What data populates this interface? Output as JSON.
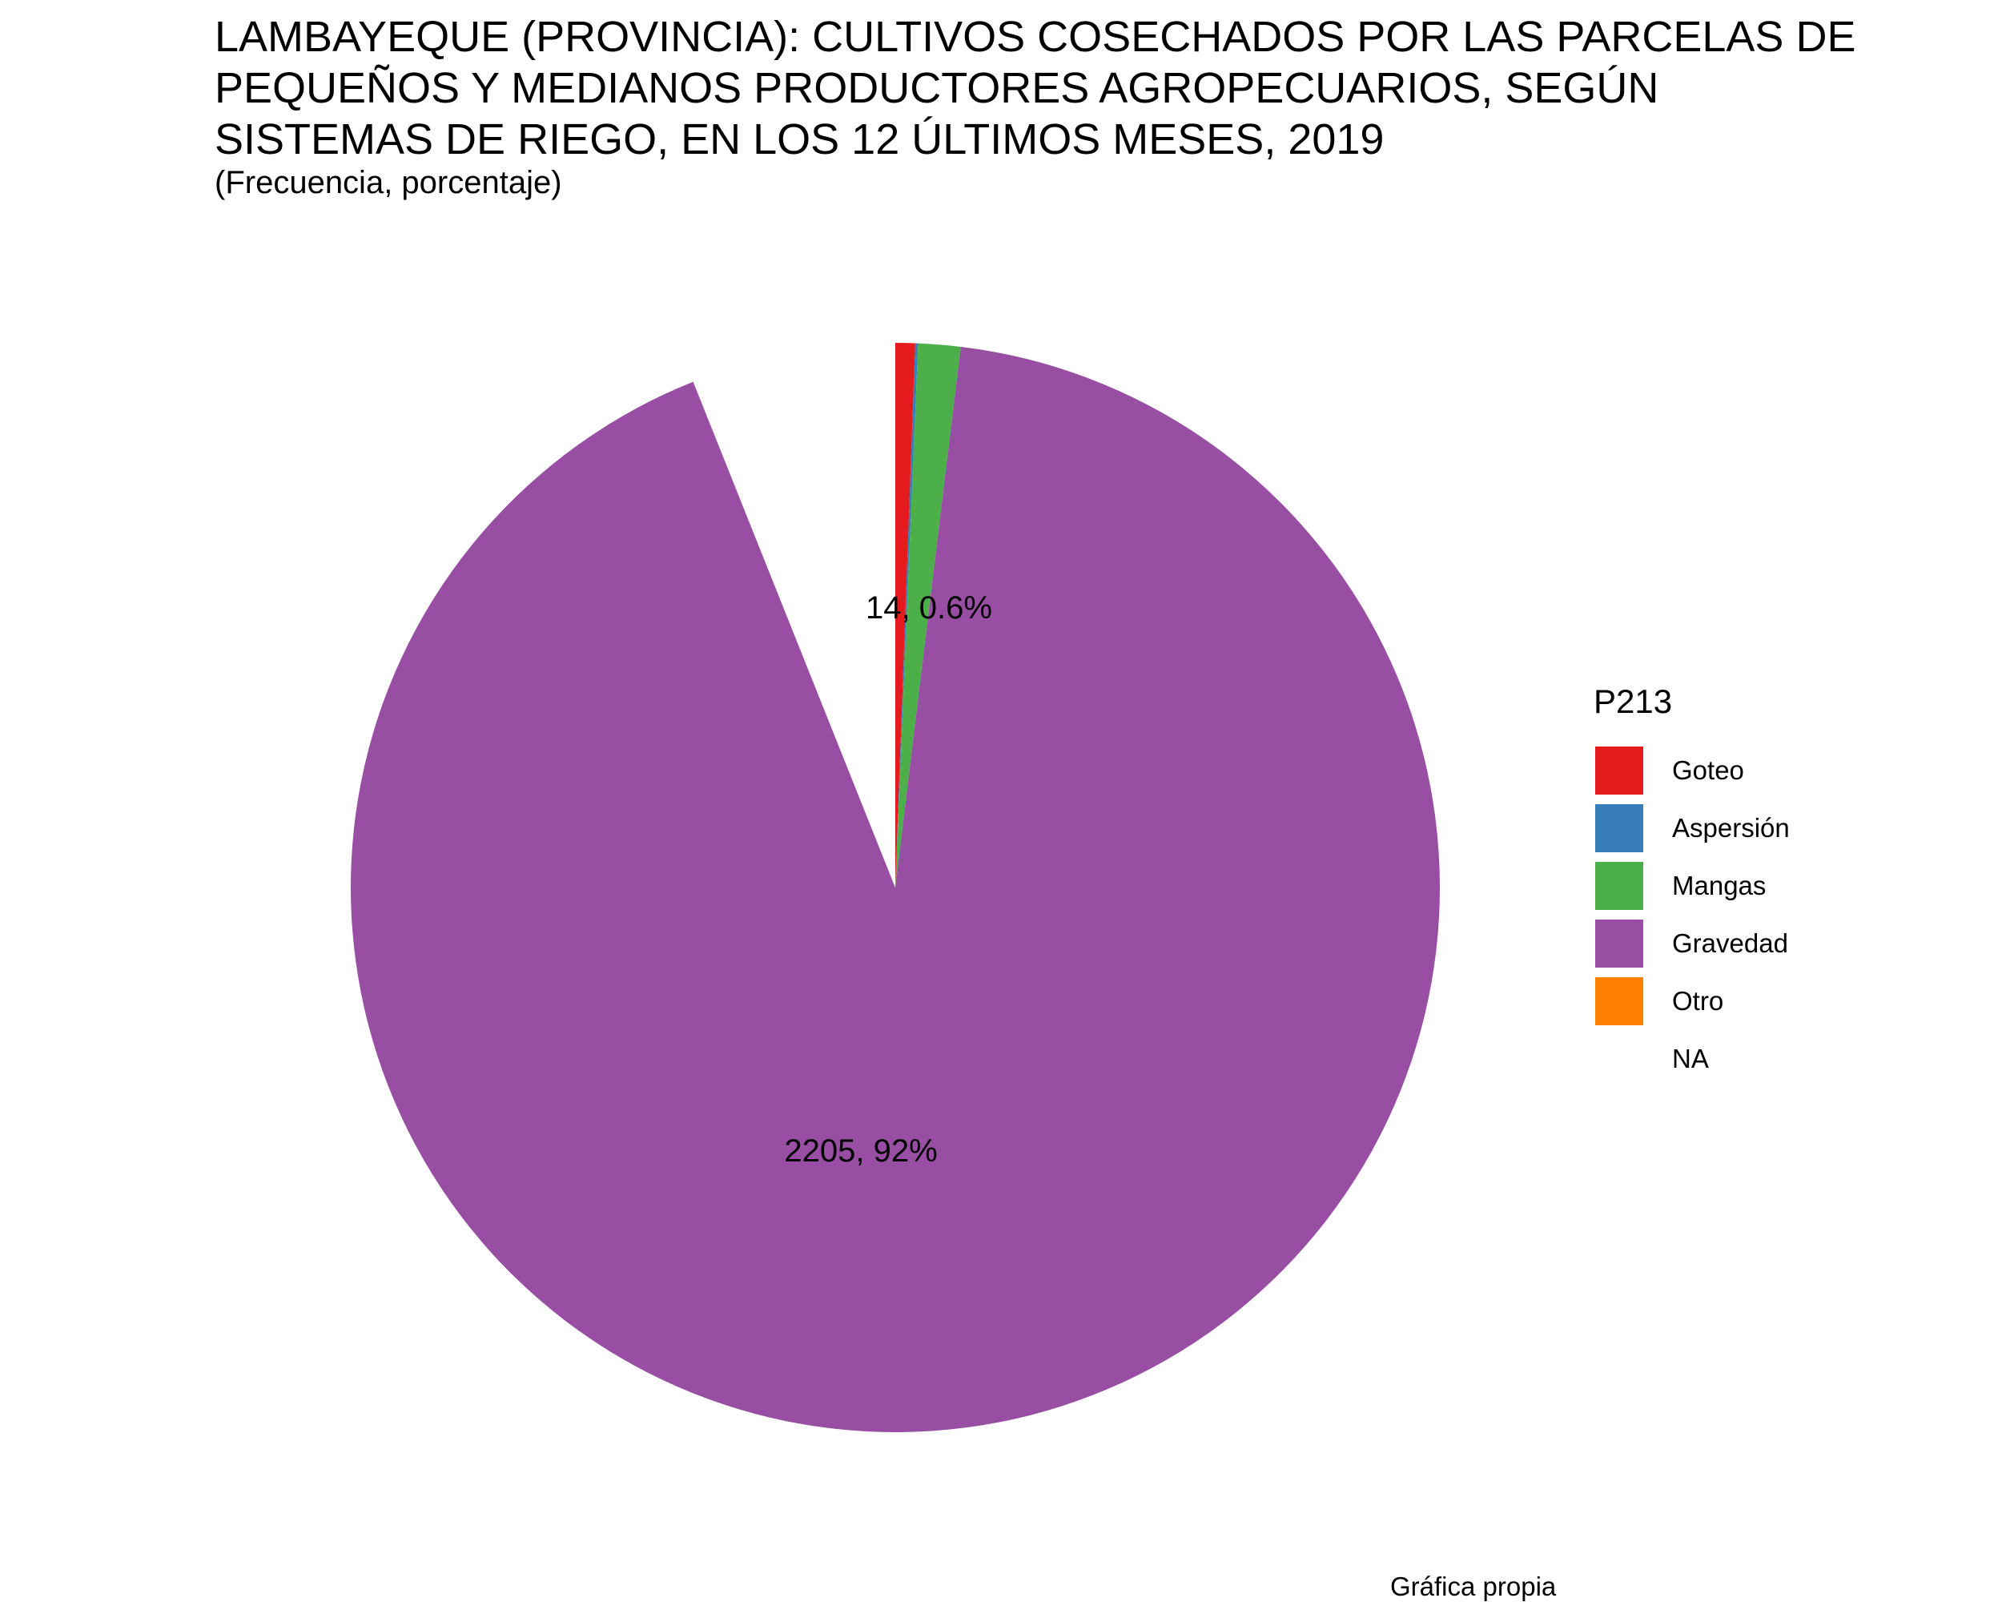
{
  "chart_data": {
    "type": "pie",
    "title_lines": [
      "LAMBAYEQUE (PROVINCIA): CULTIVOS COSECHADOS POR LAS PARCELAS DE",
      "PEQUEÑOS Y MEDIANOS PRODUCTORES AGROPECUARIOS, SEGÚN",
      "SISTEMAS DE RIEGO, EN LOS 12 ÚLTIMOS MESES, 2019"
    ],
    "subtitle": "(Frecuencia, porcentaje)",
    "caption": "Gráfica propia",
    "legend_title": "P213",
    "legend_position": "right",
    "slices": [
      {
        "name": "Goteo",
        "value": 14,
        "percent": 0.6,
        "color": "#E41A1C",
        "label": "14, 0.6%"
      },
      {
        "name": "Aspersión",
        "value": 2,
        "percent": 0.1,
        "color": "#377EB8",
        "label": ""
      },
      {
        "name": "Mangas",
        "value": 30,
        "percent": 1.3,
        "color": "#4DAF4A",
        "label": ""
      },
      {
        "name": "Gravedad",
        "value": 2205,
        "percent": 92,
        "color": "#984EA3",
        "label": "2205, 92%"
      },
      {
        "name": "Otro",
        "value": 0,
        "percent": 0,
        "color": "#FF7F00",
        "label": ""
      },
      {
        "name": "NA",
        "value": 145,
        "percent": 6,
        "color": "#FFFFFF",
        "label": ""
      }
    ]
  }
}
